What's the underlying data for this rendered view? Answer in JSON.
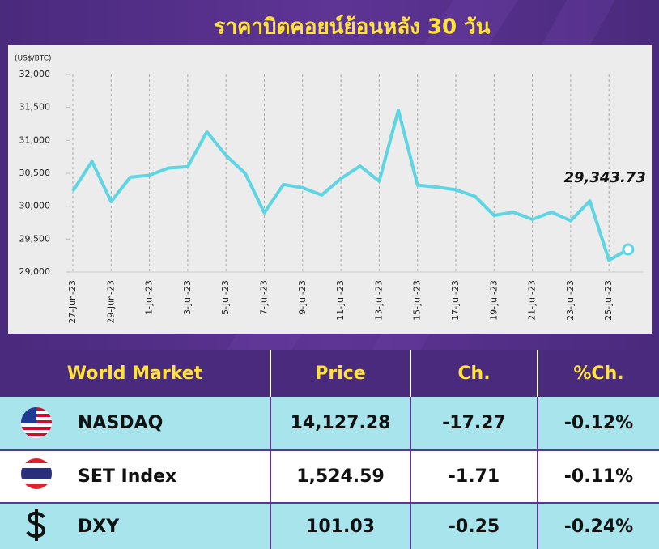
{
  "chart_data": {
    "type": "line",
    "title": "ราคาบิตคอยน์ย้อนหลัง 30 วัน",
    "y_label": "(US$/BTC)",
    "categories": [
      "27-Jun-23",
      null,
      "29-Jun-23",
      null,
      "1-Jul-23",
      null,
      "3-Jul-23",
      null,
      "5-Jul-23",
      null,
      "7-Jul-23",
      null,
      "9-Jul-23",
      null,
      "11-Jul-23",
      null,
      "13-Jul-23",
      null,
      "15-Jul-23",
      null,
      "17-Jul-23",
      null,
      "19-Jul-23",
      null,
      "21-Jul-23",
      null,
      "23-Jul-23",
      null,
      "25-Jul-23",
      null
    ],
    "values": [
      30230,
      30680,
      30070,
      30440,
      30470,
      30580,
      30600,
      31130,
      30770,
      30500,
      29900,
      30330,
      30280,
      30170,
      30420,
      30610,
      30380,
      31460,
      30320,
      30290,
      30250,
      30150,
      29860,
      29910,
      29800,
      29910,
      29780,
      30080,
      29180,
      29343.73
    ],
    "value_labels": [
      null,
      null,
      null,
      null,
      null,
      null,
      null,
      null,
      null,
      null,
      null,
      null,
      null,
      null,
      null,
      null,
      null,
      null,
      null,
      null,
      null,
      null,
      null,
      null,
      null,
      null,
      null,
      null,
      null,
      "29,343.73"
    ],
    "color": "#5fd4e2",
    "ylim": [
      29000,
      32000
    ],
    "yticks": [
      {
        "value": 29000,
        "label": "29,000"
      },
      {
        "value": 29500,
        "label": "29,500"
      },
      {
        "value": 30000,
        "label": "30,000"
      },
      {
        "value": 30500,
        "label": "30,500"
      },
      {
        "value": 31000,
        "label": "31,000"
      },
      {
        "value": 31500,
        "label": "31,500"
      },
      {
        "value": 32000,
        "label": "32,000"
      }
    ],
    "grid": true
  },
  "table": {
    "header": [
      "World Market",
      "Price",
      "Ch.",
      "%Ch."
    ],
    "rows": [
      [
        "NASDAQ",
        "14,127.28",
        "-17.27",
        "-0.12%"
      ],
      [
        "SET Index",
        "1,524.59",
        "-1.71",
        "-0.11%"
      ],
      [
        "DXY",
        "101.03",
        "-0.25",
        "-0.24%"
      ]
    ]
  }
}
